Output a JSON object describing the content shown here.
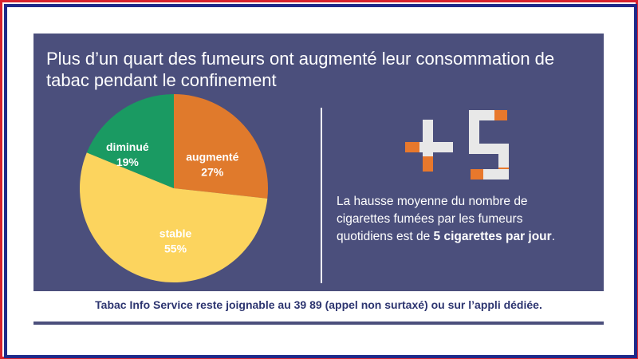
{
  "chart_data": {
    "type": "pie",
    "title": "Plus d’un quart des fumeurs ont augmenté leur consommation de tabac pendant le confinement",
    "categories": [
      "augmenté",
      "stable",
      "diminué"
    ],
    "values": [
      27,
      55,
      19
    ],
    "value_labels": [
      "27%",
      "55%",
      "19%"
    ],
    "colors": [
      "#e07a2c",
      "#fcd45e",
      "#1a9a62"
    ]
  },
  "callout": {
    "parts": [
      "La hausse moyenne du nombre de cigarettes fumées par les fumeurs quotidiens est de ",
      "5 cigarettes par jour",
      "."
    ]
  },
  "footer": "Tabac Info Service reste joignable au 39 89 (appel non surtaxé) ou sur l’appli dédiée."
}
